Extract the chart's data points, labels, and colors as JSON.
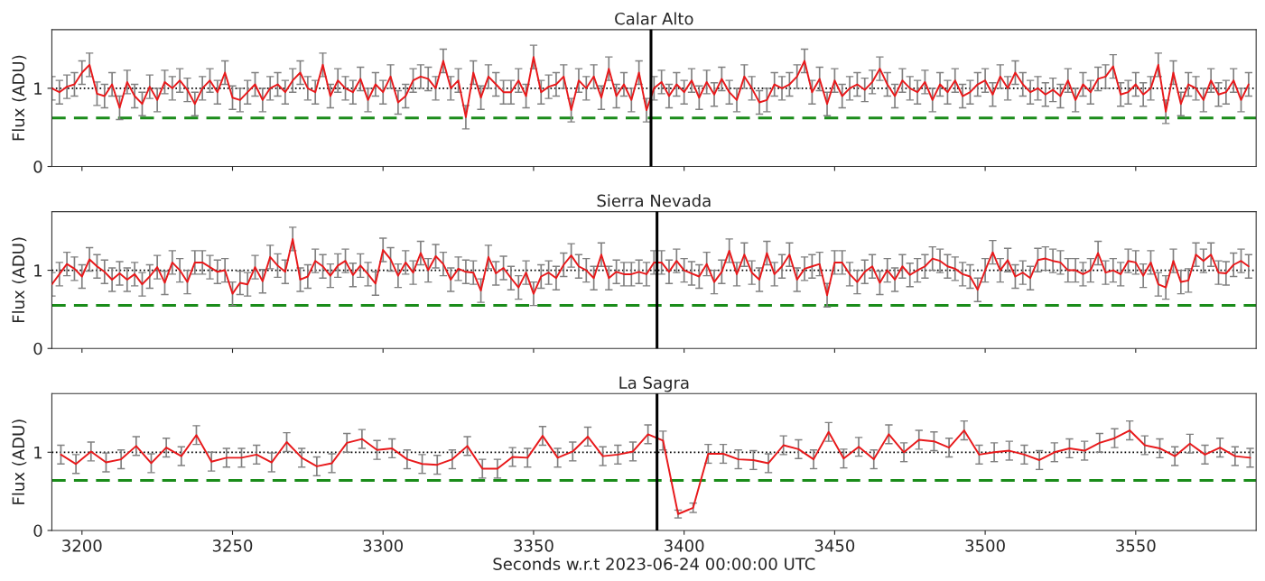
{
  "chart_data": [
    {
      "type": "line",
      "title": "Calar Alto",
      "ylabel": "Flux (ADU)",
      "xlim": [
        3190,
        3590
      ],
      "ylim": [
        0,
        1.75
      ],
      "yticks": [
        0,
        1
      ],
      "xticks": [
        3200,
        3250,
        3300,
        3350,
        3400,
        3450,
        3500,
        3550
      ],
      "tick_labels": "y",
      "grid": false,
      "legend": false,
      "x": [
        3190,
        3192.5,
        3195,
        3197.5,
        3200,
        3202.5,
        3205,
        3207.5,
        3210,
        3212.5,
        3215,
        3217.5,
        3220,
        3222.5,
        3225,
        3227.5,
        3230,
        3232.5,
        3235,
        3237.5,
        3240,
        3242.5,
        3245,
        3247.5,
        3250,
        3252.5,
        3255,
        3257.5,
        3260,
        3262.5,
        3265,
        3267.5,
        3270,
        3272.5,
        3275,
        3277.5,
        3280,
        3282.5,
        3285,
        3287.5,
        3290,
        3292.5,
        3295,
        3297.5,
        3300,
        3302.5,
        3305,
        3307.5,
        3310,
        3312.5,
        3315,
        3317.5,
        3320,
        3322.5,
        3325,
        3327.5,
        3330,
        3332.5,
        3335,
        3337.5,
        3340,
        3342.5,
        3345,
        3347.5,
        3350,
        3352.5,
        3355,
        3357.5,
        3360,
        3362.5,
        3365,
        3367.5,
        3370,
        3372.5,
        3375,
        3377.5,
        3380,
        3382.5,
        3385,
        3387.5,
        3390,
        3392.5,
        3395,
        3397.5,
        3400,
        3402.5,
        3405,
        3407.5,
        3410,
        3412.5,
        3415,
        3417.5,
        3420,
        3422.5,
        3425,
        3427.5,
        3430,
        3432.5,
        3435,
        3437.5,
        3440,
        3442.5,
        3445,
        3447.5,
        3450,
        3452.5,
        3455,
        3457.5,
        3460,
        3462.5,
        3465,
        3467.5,
        3470,
        3472.5,
        3475,
        3477.5,
        3480,
        3482.5,
        3485,
        3487.5,
        3490,
        3492.5,
        3495,
        3497.5,
        3500,
        3502.5,
        3505,
        3507.5,
        3510,
        3512.5,
        3515,
        3517.5,
        3520,
        3522.5,
        3525,
        3527.5,
        3530,
        3532.5,
        3535,
        3537.5,
        3540,
        3542.5,
        3545,
        3547.5,
        3550,
        3552.5,
        3555,
        3557.5,
        3560,
        3562.5,
        3565,
        3567.5,
        3570,
        3572.5,
        3575,
        3577.5,
        3580,
        3582.5,
        3585,
        3587.5
      ],
      "series": [
        {
          "color": "#e8191b",
          "values": [
            1.0,
            0.95,
            1.02,
            1.05,
            1.2,
            1.3,
            0.93,
            0.9,
            1.05,
            0.75,
            1.08,
            0.9,
            0.8,
            1.02,
            0.85,
            1.08,
            1.0,
            1.1,
            0.98,
            0.8,
            1.0,
            1.1,
            0.95,
            1.2,
            0.88,
            0.85,
            0.95,
            1.05,
            0.85,
            1.0,
            1.05,
            0.95,
            1.1,
            1.2,
            1.0,
            0.95,
            1.3,
            0.9,
            1.1,
            1.0,
            0.95,
            1.12,
            0.85,
            1.05,
            0.95,
            1.15,
            0.82,
            0.9,
            1.1,
            1.15,
            1.12,
            1.0,
            1.35,
            1.0,
            1.1,
            0.63,
            1.2,
            0.88,
            1.15,
            1.05,
            0.95,
            0.95,
            1.1,
            0.9,
            1.4,
            0.95,
            1.02,
            1.05,
            1.15,
            0.72,
            1.1,
            1.0,
            1.15,
            0.88,
            1.25,
            0.9,
            1.05,
            0.85,
            1.2,
            0.72,
            1.0,
            1.08,
            0.9,
            1.05,
            0.95,
            1.1,
            0.88,
            1.08,
            0.92,
            1.12,
            0.95,
            0.85,
            1.15,
            1.0,
            0.82,
            0.85,
            1.05,
            1.0,
            1.05,
            1.15,
            1.35,
            0.95,
            1.12,
            0.8,
            1.1,
            0.9,
            1.0,
            1.05,
            0.98,
            1.08,
            1.25,
            1.05,
            0.9,
            1.1,
            1.0,
            0.95,
            1.08,
            0.85,
            1.05,
            0.95,
            1.1,
            0.9,
            0.95,
            1.05,
            1.1,
            0.92,
            1.15,
            1.0,
            1.2,
            1.05,
            0.95,
            1.0,
            0.92,
            0.98,
            0.9,
            1.1,
            0.85,
            1.05,
            0.95,
            1.12,
            1.15,
            1.28,
            0.92,
            0.95,
            1.05,
            0.92,
            1.0,
            1.3,
            0.7,
            1.2,
            0.8,
            1.05,
            1.0,
            0.85,
            1.1,
            0.92,
            0.95,
            1.1,
            0.85,
            1.05
          ],
          "errors": [
            0.15,
            0.15,
            0.15,
            0.15,
            0.15,
            0.15,
            0.15,
            0.15,
            0.15,
            0.15,
            0.15,
            0.15,
            0.15,
            0.15,
            0.15,
            0.15,
            0.15,
            0.15,
            0.15,
            0.15,
            0.15,
            0.15,
            0.15,
            0.15,
            0.15,
            0.15,
            0.15,
            0.15,
            0.15,
            0.15,
            0.15,
            0.15,
            0.15,
            0.15,
            0.15,
            0.15,
            0.15,
            0.15,
            0.15,
            0.15,
            0.15,
            0.15,
            0.15,
            0.15,
            0.15,
            0.15,
            0.15,
            0.15,
            0.15,
            0.15,
            0.15,
            0.15,
            0.15,
            0.15,
            0.15,
            0.15,
            0.15,
            0.15,
            0.15,
            0.15,
            0.15,
            0.15,
            0.15,
            0.15,
            0.15,
            0.15,
            0.15,
            0.15,
            0.15,
            0.15,
            0.15,
            0.15,
            0.15,
            0.15,
            0.15,
            0.15,
            0.15,
            0.15,
            0.15,
            0.15,
            0.15,
            0.15,
            0.15,
            0.15,
            0.15,
            0.15,
            0.15,
            0.15,
            0.15,
            0.15,
            0.15,
            0.15,
            0.15,
            0.15,
            0.15,
            0.15,
            0.15,
            0.15,
            0.15,
            0.15,
            0.15,
            0.15,
            0.15,
            0.15,
            0.15,
            0.15,
            0.15,
            0.15,
            0.15,
            0.15,
            0.15,
            0.15,
            0.15,
            0.15,
            0.15,
            0.15,
            0.15,
            0.15,
            0.15,
            0.15,
            0.15,
            0.15,
            0.15,
            0.15,
            0.15,
            0.15,
            0.15,
            0.15,
            0.15,
            0.15,
            0.15,
            0.15,
            0.15,
            0.15,
            0.15,
            0.15,
            0.15,
            0.15,
            0.15,
            0.15,
            0.15,
            0.15,
            0.15,
            0.15,
            0.15,
            0.15,
            0.15,
            0.15,
            0.15,
            0.15,
            0.15,
            0.15,
            0.15,
            0.15,
            0.15,
            0.15,
            0.15,
            0.15,
            0.15,
            0.15
          ]
        }
      ],
      "ref_lines": [
        {
          "axis": "x",
          "value": 3389,
          "color": "#000000",
          "line_style": "solid"
        },
        {
          "axis": "y",
          "value": 1,
          "color": "#000000",
          "line_style": "dotted"
        },
        {
          "axis": "y",
          "value": 0.62,
          "color": "#1a8c1a",
          "line_style": "dashed"
        }
      ]
    },
    {
      "type": "line",
      "title": "Sierra Nevada",
      "ylabel": "Flux (ADU)",
      "xlim": [
        3190,
        3590
      ],
      "ylim": [
        0,
        1.75
      ],
      "yticks": [
        0,
        1
      ],
      "xticks": [
        3200,
        3250,
        3300,
        3350,
        3400,
        3450,
        3500,
        3550
      ],
      "tick_labels": "y",
      "grid": false,
      "legend": false,
      "x": [
        3190,
        3192.5,
        3195,
        3197.5,
        3200,
        3202.5,
        3205,
        3207.5,
        3210,
        3212.5,
        3215,
        3217.5,
        3220,
        3222.5,
        3225,
        3227.5,
        3230,
        3232.5,
        3235,
        3237.5,
        3240,
        3242.5,
        3245,
        3247.5,
        3250,
        3252.5,
        3255,
        3257.5,
        3260,
        3262.5,
        3265,
        3267.5,
        3270,
        3272.5,
        3275,
        3277.5,
        3280,
        3282.5,
        3285,
        3287.5,
        3290,
        3292.5,
        3295,
        3297.5,
        3300,
        3302.5,
        3305,
        3307.5,
        3310,
        3312.5,
        3315,
        3317.5,
        3320,
        3322.5,
        3325,
        3327.5,
        3330,
        3332.5,
        3335,
        3337.5,
        3340,
        3342.5,
        3345,
        3347.5,
        3350,
        3352.5,
        3355,
        3357.5,
        3360,
        3362.5,
        3365,
        3367.5,
        3370,
        3372.5,
        3375,
        3377.5,
        3380,
        3382.5,
        3385,
        3387.5,
        3390,
        3392.5,
        3395,
        3397.5,
        3400,
        3402.5,
        3405,
        3407.5,
        3410,
        3412.5,
        3415,
        3417.5,
        3420,
        3422.5,
        3425,
        3427.5,
        3430,
        3432.5,
        3435,
        3437.5,
        3440,
        3442.5,
        3445,
        3447.5,
        3450,
        3452.5,
        3455,
        3457.5,
        3460,
        3462.5,
        3465,
        3467.5,
        3470,
        3472.5,
        3475,
        3477.5,
        3480,
        3482.5,
        3485,
        3487.5,
        3490,
        3492.5,
        3495,
        3497.5,
        3500,
        3502.5,
        3505,
        3507.5,
        3510,
        3512.5,
        3515,
        3517.5,
        3520,
        3522.5,
        3525,
        3527.5,
        3530,
        3532.5,
        3535,
        3537.5,
        3540,
        3542.5,
        3545,
        3547.5,
        3550,
        3552.5,
        3555,
        3557.5,
        3560,
        3562.5,
        3565,
        3567.5,
        3570,
        3572.5,
        3575,
        3577.5,
        3580,
        3582.5,
        3585,
        3587.5
      ],
      "series": [
        {
          "color": "#e8191b",
          "values": [
            0.82,
            0.95,
            1.08,
            1.02,
            0.92,
            1.14,
            1.05,
            0.98,
            0.88,
            0.96,
            0.88,
            0.95,
            0.82,
            0.92,
            1.04,
            0.84,
            1.1,
            1.0,
            0.85,
            1.1,
            1.1,
            1.04,
            0.98,
            1.0,
            0.7,
            0.84,
            0.82,
            1.04,
            0.86,
            1.17,
            1.06,
            0.98,
            1.4,
            0.88,
            0.92,
            1.12,
            1.05,
            0.93,
            1.06,
            1.12,
            0.94,
            1.06,
            0.95,
            0.83,
            1.26,
            1.14,
            0.93,
            1.1,
            0.97,
            1.22,
            1.0,
            1.18,
            1.08,
            0.88,
            1.02,
            0.98,
            0.97,
            0.74,
            1.17,
            0.96,
            1.03,
            0.9,
            0.78,
            0.97,
            0.7,
            0.92,
            0.97,
            0.9,
            1.07,
            1.19,
            1.05,
            1.0,
            0.9,
            1.2,
            0.9,
            0.98,
            0.95,
            0.95,
            0.98,
            0.95,
            1.1,
            1.1,
            0.98,
            1.12,
            1.0,
            0.96,
            0.92,
            1.08,
            0.85,
            0.98,
            1.25,
            0.95,
            1.2,
            0.97,
            0.88,
            1.22,
            0.95,
            1.05,
            1.2,
            0.88,
            1.02,
            1.05,
            1.08,
            0.68,
            1.1,
            1.1,
            0.95,
            0.85,
            0.98,
            1.05,
            0.84,
            1.0,
            0.88,
            1.05,
            0.94,
            1.0,
            1.05,
            1.15,
            1.12,
            1.05,
            1.02,
            0.95,
            0.92,
            0.75,
            1.0,
            1.23,
            1.0,
            1.13,
            0.92,
            0.97,
            0.9,
            1.13,
            1.15,
            1.12,
            1.1,
            1.0,
            1.0,
            0.95,
            1.0,
            1.22,
            0.97,
            1.0,
            0.95,
            1.12,
            1.1,
            0.93,
            1.1,
            0.82,
            0.78,
            1.12,
            0.85,
            0.87,
            1.2,
            1.12,
            1.2,
            0.97,
            0.96,
            1.07,
            1.12,
            1.05
          ],
          "errors": [
            0.15,
            0.15,
            0.15,
            0.15,
            0.15,
            0.15,
            0.15,
            0.15,
            0.15,
            0.15,
            0.15,
            0.15,
            0.15,
            0.15,
            0.15,
            0.15,
            0.15,
            0.15,
            0.15,
            0.15,
            0.15,
            0.15,
            0.15,
            0.15,
            0.15,
            0.15,
            0.15,
            0.15,
            0.15,
            0.15,
            0.15,
            0.15,
            0.15,
            0.15,
            0.15,
            0.15,
            0.15,
            0.15,
            0.15,
            0.15,
            0.15,
            0.15,
            0.15,
            0.15,
            0.15,
            0.15,
            0.15,
            0.15,
            0.15,
            0.15,
            0.15,
            0.15,
            0.15,
            0.15,
            0.15,
            0.15,
            0.15,
            0.15,
            0.15,
            0.15,
            0.15,
            0.15,
            0.15,
            0.15,
            0.15,
            0.15,
            0.15,
            0.15,
            0.15,
            0.15,
            0.15,
            0.15,
            0.15,
            0.15,
            0.15,
            0.15,
            0.15,
            0.15,
            0.15,
            0.15,
            0.15,
            0.15,
            0.15,
            0.15,
            0.15,
            0.15,
            0.15,
            0.15,
            0.15,
            0.15,
            0.15,
            0.15,
            0.15,
            0.15,
            0.15,
            0.15,
            0.15,
            0.15,
            0.15,
            0.15,
            0.15,
            0.15,
            0.15,
            0.15,
            0.15,
            0.15,
            0.15,
            0.15,
            0.15,
            0.15,
            0.15,
            0.15,
            0.15,
            0.15,
            0.15,
            0.15,
            0.15,
            0.15,
            0.15,
            0.15,
            0.15,
            0.15,
            0.15,
            0.15,
            0.15,
            0.15,
            0.15,
            0.15,
            0.15,
            0.15,
            0.15,
            0.15,
            0.15,
            0.15,
            0.15,
            0.15,
            0.15,
            0.15,
            0.15,
            0.15,
            0.15,
            0.15,
            0.15,
            0.15,
            0.15,
            0.15,
            0.15,
            0.15,
            0.15,
            0.15,
            0.15,
            0.15,
            0.15,
            0.15,
            0.15,
            0.15,
            0.15,
            0.15,
            0.15,
            0.15
          ]
        }
      ],
      "ref_lines": [
        {
          "axis": "x",
          "value": 3391,
          "color": "#000000",
          "line_style": "solid"
        },
        {
          "axis": "y",
          "value": 1,
          "color": "#000000",
          "line_style": "dotted"
        },
        {
          "axis": "y",
          "value": 0.55,
          "color": "#1a8c1a",
          "line_style": "dashed"
        }
      ]
    },
    {
      "type": "line",
      "title": "La Sagra",
      "ylabel": "Flux (ADU)",
      "xlabel": "Seconds w.r.t 2023-06-24 00:00:00 UTC",
      "xlim": [
        3190,
        3590
      ],
      "ylim": [
        0,
        1.75
      ],
      "yticks": [
        0,
        1
      ],
      "xticks": [
        3200,
        3250,
        3300,
        3350,
        3400,
        3450,
        3500,
        3550
      ],
      "grid": false,
      "legend": false,
      "x": [
        3193,
        3198,
        3203,
        3208,
        3213,
        3218,
        3223,
        3228,
        3233,
        3238,
        3243,
        3248,
        3253,
        3258,
        3263,
        3268,
        3273,
        3278,
        3283,
        3288,
        3293,
        3298,
        3303,
        3308,
        3313,
        3318,
        3323,
        3328,
        3333,
        3338,
        3343,
        3348,
        3353,
        3358,
        3363,
        3368,
        3373,
        3378,
        3383,
        3388,
        3393,
        3398,
        3403,
        3408,
        3413,
        3418,
        3423,
        3428,
        3433,
        3438,
        3443,
        3448,
        3453,
        3458,
        3463,
        3468,
        3473,
        3478,
        3483,
        3488,
        3493,
        3498,
        3503,
        3508,
        3513,
        3518,
        3523,
        3528,
        3533,
        3538,
        3543,
        3548,
        3553,
        3558,
        3563,
        3568,
        3573,
        3578,
        3583,
        3588
      ],
      "series": [
        {
          "color": "#e8191b",
          "values": [
            0.97,
            0.85,
            1.01,
            0.87,
            0.91,
            1.08,
            0.86,
            1.06,
            0.95,
            1.22,
            0.88,
            0.93,
            0.93,
            0.97,
            0.87,
            1.13,
            0.93,
            0.82,
            0.86,
            1.12,
            1.17,
            1.03,
            1.05,
            0.91,
            0.85,
            0.84,
            0.91,
            1.08,
            0.79,
            0.79,
            0.94,
            0.93,
            1.21,
            0.93,
            1.01,
            1.2,
            0.95,
            0.97,
            1.01,
            1.23,
            1.15,
            0.21,
            0.29,
            0.98,
            0.98,
            0.91,
            0.9,
            0.86,
            1.09,
            1.04,
            0.91,
            1.26,
            0.92,
            1.07,
            0.91,
            1.23,
            1.0,
            1.16,
            1.14,
            1.06,
            1.28,
            0.97,
            1.0,
            1.02,
            0.97,
            0.9,
            1.0,
            1.05,
            1.02,
            1.12,
            1.18,
            1.28,
            1.09,
            1.05,
            0.95,
            1.11,
            0.97,
            1.06,
            0.95,
            0.93
          ],
          "errors": [
            0.12,
            0.12,
            0.12,
            0.12,
            0.12,
            0.12,
            0.12,
            0.12,
            0.12,
            0.12,
            0.12,
            0.12,
            0.12,
            0.12,
            0.12,
            0.12,
            0.12,
            0.12,
            0.12,
            0.12,
            0.12,
            0.12,
            0.12,
            0.12,
            0.12,
            0.12,
            0.12,
            0.12,
            0.12,
            0.12,
            0.12,
            0.12,
            0.12,
            0.12,
            0.12,
            0.12,
            0.12,
            0.12,
            0.12,
            0.12,
            0.12,
            0.05,
            0.06,
            0.12,
            0.12,
            0.12,
            0.12,
            0.12,
            0.12,
            0.12,
            0.12,
            0.12,
            0.12,
            0.12,
            0.12,
            0.12,
            0.12,
            0.12,
            0.12,
            0.12,
            0.12,
            0.12,
            0.12,
            0.12,
            0.12,
            0.12,
            0.12,
            0.12,
            0.12,
            0.12,
            0.12,
            0.12,
            0.12,
            0.12,
            0.12,
            0.12,
            0.12,
            0.12,
            0.12,
            0.12
          ]
        }
      ],
      "ref_lines": [
        {
          "axis": "x",
          "value": 3391,
          "color": "#000000",
          "line_style": "solid"
        },
        {
          "axis": "y",
          "value": 1,
          "color": "#000000",
          "line_style": "dotted"
        },
        {
          "axis": "y",
          "value": 0.64,
          "color": "#1a8c1a",
          "line_style": "dashed"
        }
      ]
    }
  ]
}
